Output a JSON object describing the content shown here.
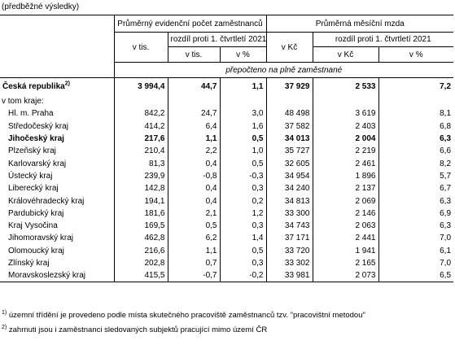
{
  "note_top": "(předběžné výsledky)",
  "header": {
    "group_employees": "Průměrný evidenční počet zaměstnanců",
    "group_wage": "Průměrná měsíční mzda",
    "v_tis": "v tis.",
    "diff_q": "rozdíl proti 1. čtvrtletí 2021",
    "diff_q2": "rozdíl proti 1. čtvrtletí 2021",
    "sub_v_tis": "v tis.",
    "sub_pct1": "v %",
    "v_kc": "v Kč",
    "sub_v_kc": "v Kč",
    "sub_pct2": "v %",
    "recalc": "přepočteno na plně zaměstnané"
  },
  "country_row": {
    "label": "Česká republika",
    "sup": "2)",
    "cells": [
      "3 994,4",
      "44,7",
      "1,1",
      "37 929",
      "2 533",
      "7,2"
    ]
  },
  "v_tom_kraje": "v tom kraje:",
  "rows": [
    {
      "label": "Hl. m. Praha",
      "bold": false,
      "cells": [
        "842,2",
        "24,7",
        "3,0",
        "48 498",
        "3 619",
        "8,1"
      ]
    },
    {
      "label": "Středočeský kraj",
      "bold": false,
      "cells": [
        "414,2",
        "6,4",
        "1,6",
        "37 582",
        "2 403",
        "6,8"
      ]
    },
    {
      "label": "Jihočeský kraj",
      "bold": true,
      "cells": [
        "217,6",
        "1,1",
        "0,5",
        "34 013",
        "2 004",
        "6,3"
      ]
    },
    {
      "label": "Plzeňský kraj",
      "bold": false,
      "cells": [
        "210,4",
        "2,2",
        "1,0",
        "35 727",
        "2 219",
        "6,6"
      ]
    },
    {
      "label": "Karlovarský kraj",
      "bold": false,
      "cells": [
        "81,3",
        "0,4",
        "0,5",
        "32 605",
        "2 461",
        "8,2"
      ]
    },
    {
      "label": "Ústecký kraj",
      "bold": false,
      "cells": [
        "239,9",
        "-0,8",
        "-0,3",
        "34 954",
        "1 896",
        "5,7"
      ]
    },
    {
      "label": "Liberecký kraj",
      "bold": false,
      "cells": [
        "142,8",
        "0,4",
        "0,3",
        "34 240",
        "2 137",
        "6,7"
      ]
    },
    {
      "label": "Královéhradecký kraj",
      "bold": false,
      "cells": [
        "194,1",
        "0,4",
        "0,2",
        "34 813",
        "2 069",
        "6,3"
      ]
    },
    {
      "label": "Pardubický kraj",
      "bold": false,
      "cells": [
        "181,6",
        "2,1",
        "1,2",
        "33 300",
        "2 146",
        "6,9"
      ]
    },
    {
      "label": "Kraj Vysočina",
      "bold": false,
      "cells": [
        "169,5",
        "0,5",
        "0,3",
        "34 743",
        "2 063",
        "6,3"
      ]
    },
    {
      "label": "Jihomoravský kraj",
      "bold": false,
      "cells": [
        "462,8",
        "6,2",
        "1,4",
        "37 171",
        "2 441",
        "7,0"
      ]
    },
    {
      "label": "Olomoucký kraj",
      "bold": false,
      "cells": [
        "216,6",
        "1,1",
        "0,5",
        "33 720",
        "1 941",
        "6,1"
      ]
    },
    {
      "label": "Zlínský kraj",
      "bold": false,
      "cells": [
        "202,8",
        "0,7",
        "0,3",
        "33 302",
        "2 165",
        "7,0"
      ]
    },
    {
      "label": "Moravskoslezský kraj",
      "bold": false,
      "cells": [
        "415,5",
        "-0,7",
        "-0,2",
        "33 981",
        "2 073",
        "6,5"
      ]
    }
  ],
  "footnotes": {
    "f1_mark": "1)",
    "f1_text": " územní třídění je  provedeno  podle  místa skutečného pracoviště zaměstnanců tzv. \"pracovištní metodou\"",
    "f2_mark": "2)",
    "f2_text": " zahrnuti jsou i zaměstnanci sledovaných subjektů pracující mimo území ČR"
  }
}
